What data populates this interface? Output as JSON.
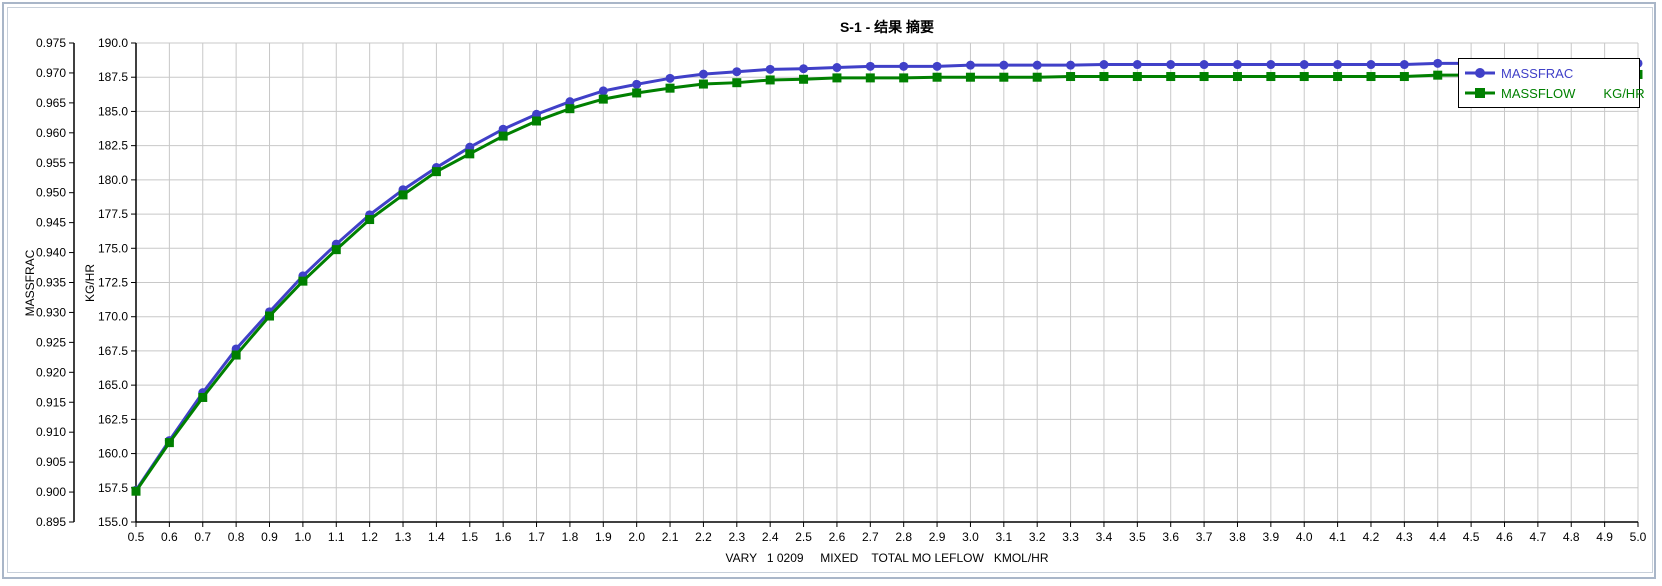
{
  "chart_data": {
    "type": "line",
    "title": "S-1 - 结果 摘要",
    "xlabel": "VARY   1 0209     MIXED    TOTAL MO LEFLOW   KMOL/HR",
    "ylabel_left": "MASSFRAC",
    "ylabel_right": "KG/HR",
    "xlim": [
      0.5,
      5.0
    ],
    "ylim_left": [
      0.895,
      0.975
    ],
    "ylim_right": [
      155.0,
      190.0
    ],
    "x_ticks": [
      "0.5",
      "0.6",
      "0.7",
      "0.8",
      "0.9",
      "1.0",
      "1.1",
      "1.2",
      "1.3",
      "1.4",
      "1.5",
      "1.6",
      "1.7",
      "1.8",
      "1.9",
      "2.0",
      "2.1",
      "2.2",
      "2.3",
      "2.4",
      "2.5",
      "2.6",
      "2.7",
      "2.8",
      "2.9",
      "3.0",
      "3.1",
      "3.2",
      "3.3",
      "3.4",
      "3.5",
      "3.6",
      "3.7",
      "3.8",
      "3.9",
      "4.0",
      "4.1",
      "4.2",
      "4.3",
      "4.4",
      "4.5",
      "4.6",
      "4.7",
      "4.8",
      "4.9",
      "5.0"
    ],
    "y_ticks_left": [
      "0.895",
      "0.900",
      "0.905",
      "0.910",
      "0.915",
      "0.920",
      "0.925",
      "0.930",
      "0.935",
      "0.940",
      "0.945",
      "0.950",
      "0.955",
      "0.960",
      "0.965",
      "0.970",
      "0.975"
    ],
    "y_ticks_right": [
      "155.0",
      "157.5",
      "160.0",
      "162.5",
      "165.0",
      "167.5",
      "170.0",
      "172.5",
      "175.0",
      "177.5",
      "180.0",
      "182.5",
      "185.0",
      "187.5",
      "190.0"
    ],
    "x": [
      0.5,
      0.6,
      0.7,
      0.8,
      0.9,
      1.0,
      1.1,
      1.2,
      1.3,
      1.4,
      1.5,
      1.6,
      1.7,
      1.8,
      1.9,
      2.0,
      2.1,
      2.2,
      2.3,
      2.4,
      2.5,
      2.6,
      2.7,
      2.8,
      2.9,
      3.0,
      3.1,
      3.2,
      3.3,
      3.4,
      3.5,
      3.6,
      3.7,
      3.8,
      3.9,
      4.0,
      4.1,
      4.2,
      4.3,
      4.4,
      4.5,
      4.6,
      4.7,
      4.8,
      4.9,
      5.0
    ],
    "legend_position": "top-right",
    "series": [
      {
        "name": "MASSFRAC",
        "axis": "left",
        "color": "#4040c8",
        "marker": "circle",
        "values": [
          0.9003,
          0.9086,
          0.9166,
          0.9239,
          0.9301,
          0.9361,
          0.9414,
          0.9463,
          0.9505,
          0.9542,
          0.9576,
          0.9606,
          0.9631,
          0.9652,
          0.967,
          0.9681,
          0.9691,
          0.9698,
          0.9702,
          0.9706,
          0.9707,
          0.9709,
          0.9711,
          0.9711,
          0.9711,
          0.9713,
          0.9713,
          0.9713,
          0.9713,
          0.9714,
          0.9714,
          0.9714,
          0.9714,
          0.9714,
          0.9714,
          0.9714,
          0.9714,
          0.9714,
          0.9714,
          0.9716,
          0.9716,
          0.9716,
          0.9716,
          0.9716,
          0.9716,
          0.9716
        ]
      },
      {
        "name": "MASSFLOW",
        "unit": "KG/HR",
        "axis": "right",
        "color": "#008000",
        "marker": "square",
        "values": [
          157.25,
          160.8,
          164.1,
          167.2,
          170.05,
          172.6,
          174.9,
          177.1,
          178.9,
          180.6,
          181.9,
          183.2,
          184.3,
          185.2,
          185.9,
          186.35,
          186.7,
          187.0,
          187.1,
          187.3,
          187.35,
          187.45,
          187.45,
          187.45,
          187.5,
          187.5,
          187.5,
          187.5,
          187.55,
          187.55,
          187.55,
          187.55,
          187.55,
          187.55,
          187.55,
          187.55,
          187.55,
          187.55,
          187.55,
          187.65,
          187.65,
          187.65,
          187.65,
          187.65,
          187.65,
          187.7
        ]
      }
    ]
  }
}
